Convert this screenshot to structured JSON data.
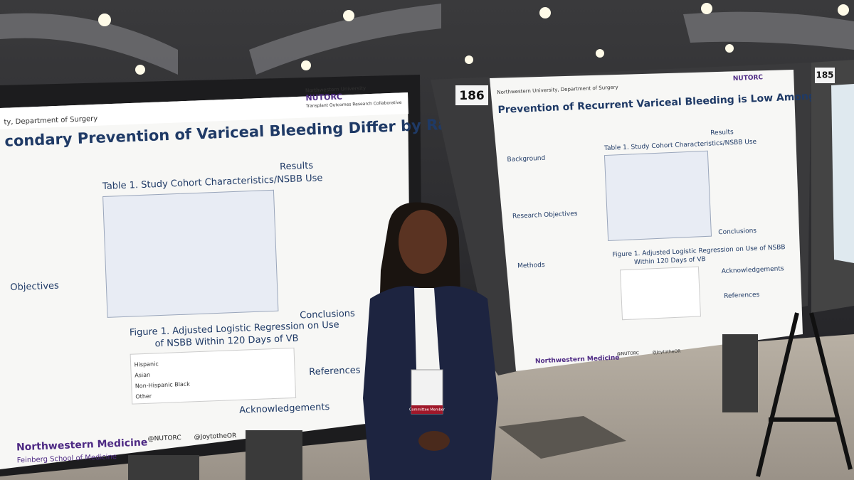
{
  "left_poster": {
    "department": "ty, Department of Surgery",
    "org": "Northwestern University",
    "org_logo": "NUTORC",
    "org_sub": "Transplant Outcomes Research Collaborative",
    "title": "condary Prevention of Variceal Bleeding Differ by Race and Ethnicity",
    "sections": [
      "Objectives",
      "Results",
      "Conclusions",
      "References",
      "Acknowledgements"
    ],
    "table_title": "Table 1. Study Cohort Characteristics/NSBB Use",
    "figure_title": [
      "Figure 1. Adjusted Logistic Regression on Use",
      "of NSBB Within 120 Days of VB"
    ],
    "figure_labels": [
      "Hispanic",
      "Asian",
      "Non-Hispanic Black",
      "Other"
    ],
    "footer": "Northwestern Medicine",
    "footer_sub": "Feinberg School of Medicine",
    "handles": [
      "@NUTORC",
      "@JoytotheOR"
    ]
  },
  "right_poster": {
    "number": "186",
    "department": "Northwestern University, Department of Surgery",
    "org_logo": "NUTORC",
    "title": "Prevention of Recurrent Variceal Bleeding is Low Among Patients with ALD Cirrhosis",
    "sections": [
      "Background",
      "Research Objectives",
      "Methods",
      "Results",
      "Conclusions",
      "Acknowledgements",
      "References"
    ],
    "table_title": "Table 1. Study Cohort Characteristics/NSBB Use",
    "figure_title": [
      "Figure 1. Adjusted Logistic Regression on Use of NSBB",
      "Within 120 Days of VB"
    ],
    "footer": "Northwestern Medicine",
    "handles": [
      "@NUTORC",
      "@JoytotheOR"
    ]
  },
  "far_poster": {
    "number": "185"
  },
  "badge": {
    "role": "Committee Member"
  }
}
